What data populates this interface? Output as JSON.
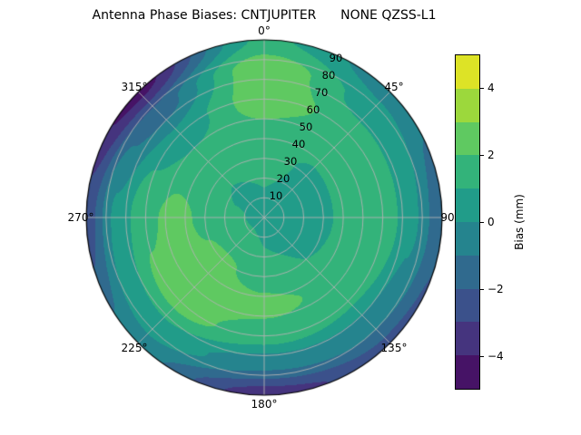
{
  "chart_data": {
    "type": "polar_contour",
    "title": "Antenna Phase Biases: CNTJUPITER      NONE QZSS-L1",
    "angular_ticks": [
      "0°",
      "45°",
      "90",
      "135°",
      "180°",
      "225°",
      "270°",
      "315°"
    ],
    "angular_tick_values_deg": [
      0,
      45,
      90,
      135,
      180,
      225,
      270,
      315
    ],
    "radial_ticks": [
      "10",
      "20",
      "30",
      "40",
      "50",
      "60",
      "70",
      "80",
      "90"
    ],
    "radial_range": [
      0,
      90
    ],
    "radial_label_azimuth_deg": 22.5,
    "grid": true,
    "colormap": "viridis",
    "levels": [
      -5,
      -4,
      -3,
      -2,
      -1,
      0,
      1,
      2,
      3,
      4,
      5
    ],
    "band_colors": [
      "#461366",
      "#45347e",
      "#3b518b",
      "#306a8e",
      "#25848e",
      "#219c89",
      "#33b37a",
      "#5fc961",
      "#9cd83c",
      "#dde326"
    ],
    "grid_line_color": "#b2b2b2",
    "colorbar": {
      "label": "Bias (mm)",
      "ticks": [
        "4",
        "2",
        "0",
        "−2",
        "−4"
      ],
      "tick_values": [
        4,
        2,
        0,
        -2,
        -4
      ],
      "range": [
        -5,
        5
      ]
    },
    "grid_values": {
      "description": "Estimated antenna phase bias (mm) sampled on azimuth (deg, clockwise from top) x radius (elevation rings) grid",
      "azimuth_deg": [
        0,
        45,
        90,
        135,
        180,
        225,
        270,
        315
      ],
      "radius": [
        0,
        15,
        30,
        45,
        60,
        75,
        90
      ],
      "bias_mm": [
        [
          0.8,
          1.0,
          1.3,
          1.8,
          2.6,
          2.8,
          1.2
        ],
        [
          0.8,
          0.9,
          0.9,
          1.2,
          1.6,
          0.6,
          -0.5
        ],
        [
          0.8,
          0.7,
          0.8,
          1.6,
          1.8,
          0.2,
          -1.8
        ],
        [
          0.8,
          0.8,
          1.0,
          1.8,
          1.2,
          -0.5,
          -2.3
        ],
        [
          0.8,
          1.0,
          1.6,
          2.3,
          1.5,
          -0.8,
          -3.6
        ],
        [
          0.8,
          1.2,
          2.2,
          2.7,
          2.4,
          0.8,
          -0.6
        ],
        [
          0.8,
          1.1,
          1.8,
          2.3,
          1.8,
          0.2,
          -2.6
        ],
        [
          0.8,
          0.9,
          1.1,
          1.2,
          0.3,
          -1.5,
          -4.4
        ]
      ]
    }
  }
}
